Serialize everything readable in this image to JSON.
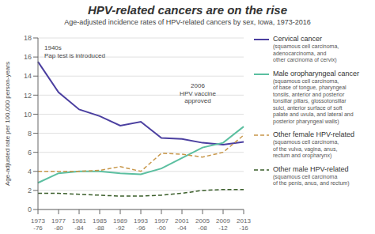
{
  "chart_data": {
    "type": "line",
    "title": "HPV-related cancers are on the rise",
    "subtitle": "Age-adjusted incidence rates of HPV-related cancers by sex, Iowa, 1973-2016",
    "ylabel": "Age-adjusted rate per 100,000 person-years",
    "categories": [
      "1973\n-76",
      "1977\n-80",
      "1981\n-84",
      "1985\n-88",
      "1989\n-92",
      "1993\n-96",
      "1997\n-00",
      "2001\n-04",
      "2005\n-08",
      "2009\n-12",
      "2013\n-16"
    ],
    "ylim": [
      0,
      18
    ],
    "yticks": [
      0,
      2,
      4,
      6,
      8,
      10,
      12,
      14,
      16,
      18
    ],
    "grid": true,
    "series": [
      {
        "name": "Cervical cancer",
        "sublabel": "(squamous cell carcinoma,\nadenocarcinoma, and\nother carcinoma of cervix)",
        "color": "#4b3fa0",
        "line_style": "solid",
        "values": [
          15.5,
          12.3,
          10.5,
          9.8,
          8.8,
          9.2,
          7.5,
          7.4,
          7.0,
          6.8,
          7.1
        ]
      },
      {
        "name": "Male oropharyngeal cancer",
        "sublabel": "(squamous cell carcinoma,\nof base of tongue, pharyngeal\ntonsils, anterior and posterior\ntonsillar pillars, glossotonsillar\nsulci, anterior surface of soft\npalate and uvula, and lateral and\nposterior pharyngeal walls)",
        "color": "#5bbfa0",
        "line_style": "solid",
        "values": [
          2.8,
          3.8,
          4.0,
          4.0,
          3.8,
          3.7,
          4.3,
          5.4,
          6.5,
          7.0,
          8.7
        ]
      },
      {
        "name": "Other female HPV-related",
        "sublabel": "(squamous cell carcinoma,\nof the vulva, vagina, anus,\nrectum and oropharynx)",
        "color": "#c8974a",
        "line_style": "dashed",
        "values": [
          4.0,
          4.0,
          4.0,
          4.1,
          4.5,
          4.0,
          5.9,
          5.8,
          5.5,
          6.0,
          7.8
        ]
      },
      {
        "name": "Other male HPV-related",
        "sublabel": "(squamous cell carcinoma\nof the penis, anus, and rectum)",
        "color": "#3a5e2a",
        "line_style": "dashed",
        "values": [
          1.7,
          1.7,
          1.6,
          1.5,
          1.4,
          1.4,
          1.5,
          1.7,
          2.0,
          2.1,
          2.1
        ]
      }
    ],
    "annotations": [
      "1940s\nPap test is introduced",
      "2006\nHPV vaccine\napproved"
    ]
  }
}
